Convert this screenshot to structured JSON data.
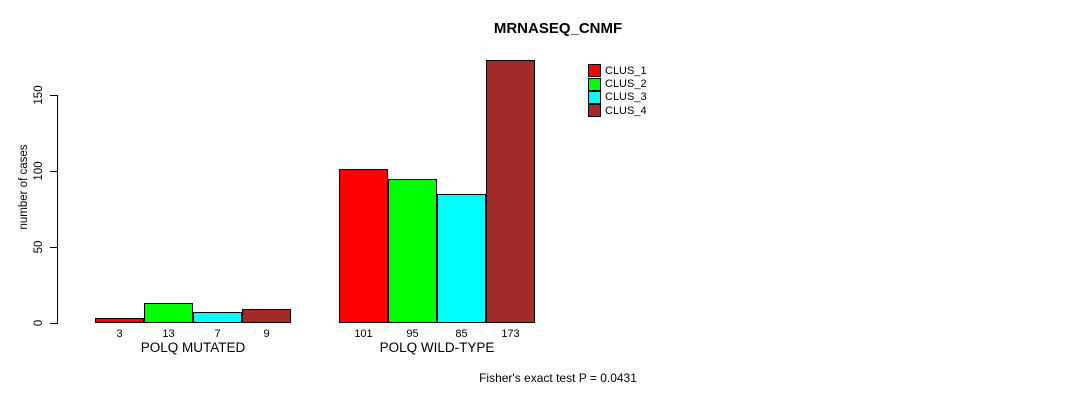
{
  "chart_data": {
    "type": "bar",
    "title": "MRNASEQ_CNMF",
    "ylabel": "number of cases",
    "xlabel": "",
    "footer": "Fisher's exact test P = 0.0431",
    "categories": [
      "POLQ MUTATED",
      "POLQ WILD-TYPE"
    ],
    "series": [
      {
        "name": "CLUS_1",
        "color": "#ff0000",
        "values": [
          3,
          101
        ]
      },
      {
        "name": "CLUS_2",
        "color": "#00ff00",
        "values": [
          13,
          95
        ]
      },
      {
        "name": "CLUS_3",
        "color": "#00ffff",
        "values": [
          7,
          85
        ]
      },
      {
        "name": "CLUS_4",
        "color": "#a52a2a",
        "values": [
          9,
          173
        ]
      }
    ],
    "bar_value_labels": [
      [
        "3",
        "13",
        "7",
        "9"
      ],
      [
        "101",
        "95",
        "85",
        "173"
      ]
    ],
    "yticks": [
      "0",
      "50",
      "100",
      "150"
    ],
    "ylim": [
      0,
      175
    ],
    "grid": false,
    "legend_position": "top-right",
    "background_color": "#ffffff",
    "axis_color": "#000000"
  }
}
